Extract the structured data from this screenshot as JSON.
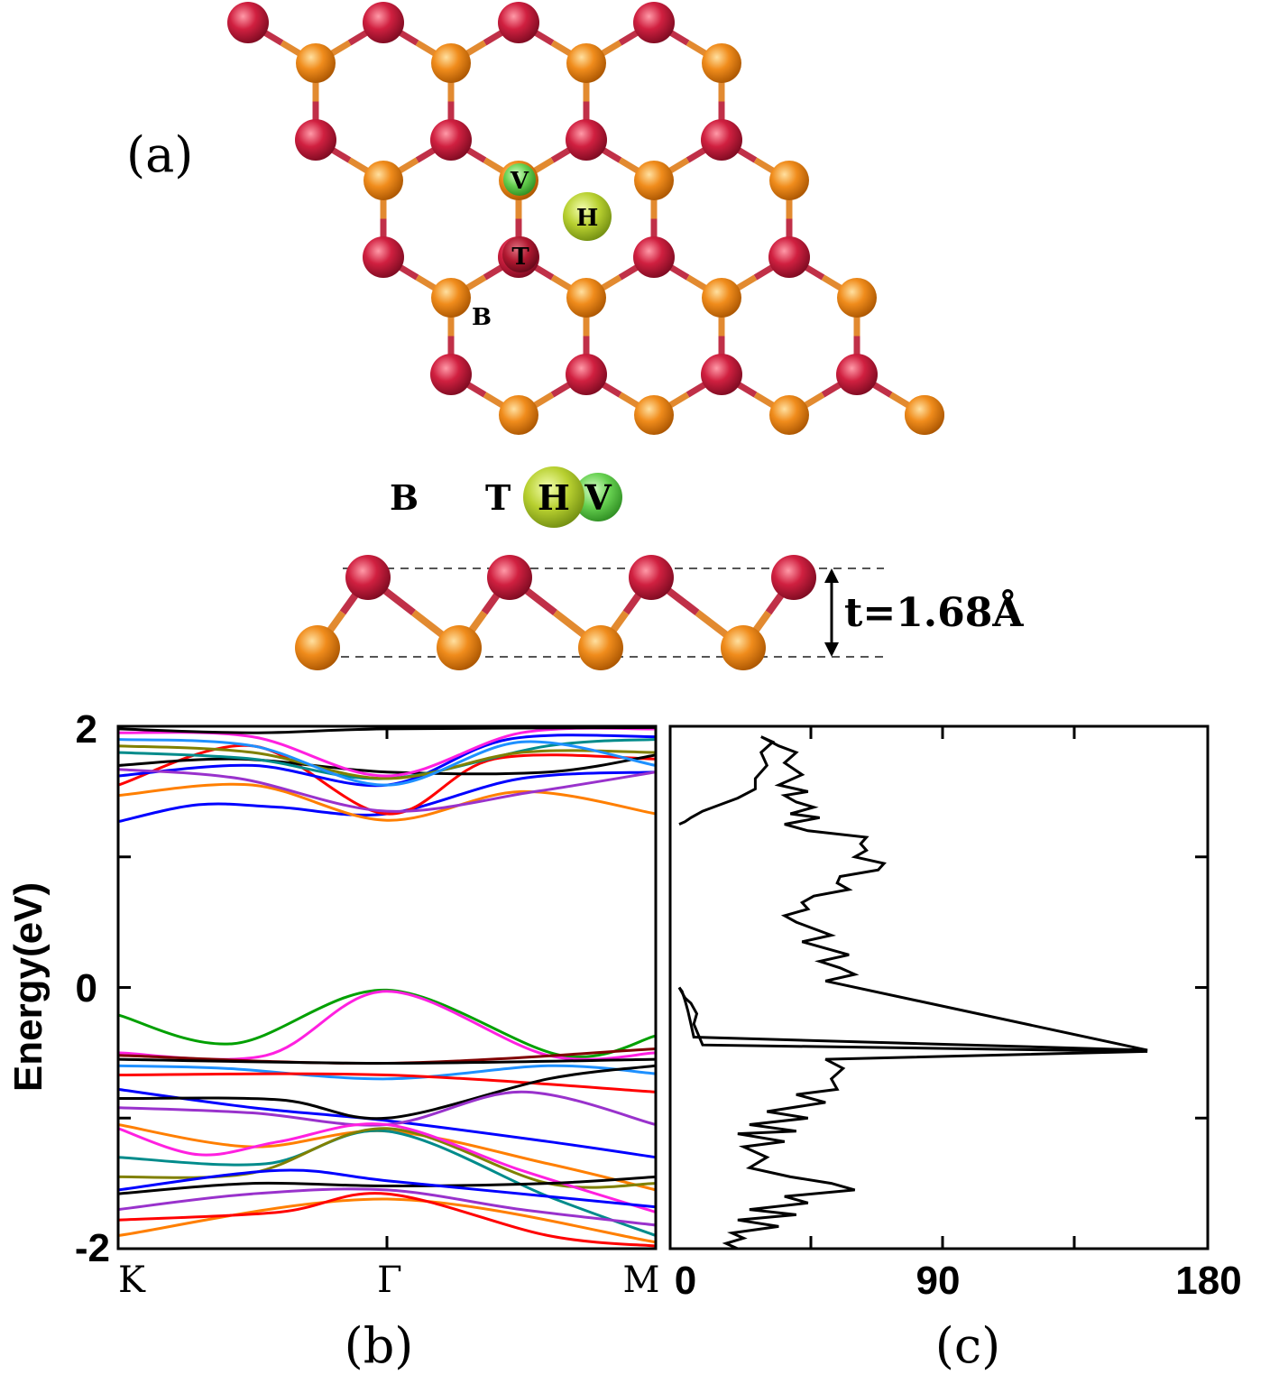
{
  "panel_labels": {
    "a": "(a)",
    "b": "(b)",
    "c": "(c)"
  },
  "sites": {
    "V": "V",
    "H": "H",
    "T": "T",
    "B": "B"
  },
  "thickness_label": "t=1.68Å",
  "colors": {
    "red_atom": "#d02040",
    "orange_atom": "#f08c1c",
    "green_atom": "#66d050",
    "yellow_atom": "#b8d030",
    "bond_red": "#c03048",
    "bond_orange": "#e28a30"
  },
  "chart_data": [
    {
      "type": "line",
      "panel": "(b)",
      "title": "",
      "ylabel": "Energy(eV)",
      "xlabel": "",
      "ylim": [
        -2,
        2
      ],
      "y_ticks": [
        "2",
        "0",
        "-2"
      ],
      "x_ticks": [
        "K",
        "Γ",
        "M"
      ],
      "x_tick_positions": [
        0,
        1,
        2
      ],
      "grid": false,
      "series": [
        {
          "color": "#00a000",
          "points": [
            [
              0,
              -0.21
            ],
            [
              0.43,
              -0.43
            ],
            [
              1,
              -0.02
            ],
            [
              1.65,
              -0.52
            ],
            [
              2,
              -0.37
            ]
          ]
        },
        {
          "color": "#ff20e0",
          "points": [
            [
              0,
              -0.5
            ],
            [
              0.55,
              -0.52
            ],
            [
              1,
              -0.03
            ],
            [
              1.6,
              -0.52
            ],
            [
              2,
              -0.5
            ]
          ]
        },
        {
          "color": "#800000",
          "points": [
            [
              0,
              -0.52
            ],
            [
              1,
              -0.58
            ],
            [
              2,
              -0.47
            ]
          ]
        },
        {
          "color": "#000000",
          "points": [
            [
              0,
              -0.55
            ],
            [
              1,
              -0.58
            ],
            [
              2,
              -0.55
            ]
          ]
        },
        {
          "color": "#1e90ff",
          "points": [
            [
              0,
              -0.6
            ],
            [
              0.4,
              -0.62
            ],
            [
              1,
              -0.7
            ],
            [
              1.6,
              -0.6
            ],
            [
              2,
              -0.66
            ]
          ]
        },
        {
          "color": "#ff0000",
          "points": [
            [
              0,
              -0.67
            ],
            [
              1,
              -0.67
            ],
            [
              2,
              -0.8
            ]
          ]
        },
        {
          "color": "#0000ff",
          "points": [
            [
              0,
              -0.78
            ],
            [
              0.5,
              -0.92
            ],
            [
              1,
              -1.02
            ],
            [
              1.6,
              -1.18
            ],
            [
              2,
              -1.3
            ]
          ]
        },
        {
          "color": "#000000",
          "points": [
            [
              0,
              -0.85
            ],
            [
              0.6,
              -0.86
            ],
            [
              1,
              -1.0
            ],
            [
              1.6,
              -0.7
            ],
            [
              2,
              -0.6
            ]
          ]
        },
        {
          "color": "#9932cc",
          "points": [
            [
              0,
              -0.92
            ],
            [
              0.5,
              -0.96
            ],
            [
              1,
              -1.05
            ],
            [
              1.5,
              -0.8
            ],
            [
              2,
              -1.05
            ]
          ]
        },
        {
          "color": "#ff7f00",
          "points": [
            [
              0,
              -1.05
            ],
            [
              0.5,
              -1.22
            ],
            [
              1,
              -1.1
            ],
            [
              1.6,
              -1.35
            ],
            [
              2,
              -1.55
            ]
          ]
        },
        {
          "color": "#008b8b",
          "points": [
            [
              0,
              -1.3
            ],
            [
              0.55,
              -1.35
            ],
            [
              1,
              -1.1
            ],
            [
              1.6,
              -1.6
            ],
            [
              2,
              -1.9
            ]
          ]
        },
        {
          "color": "#808000",
          "points": [
            [
              0,
              -1.45
            ],
            [
              0.5,
              -1.42
            ],
            [
              1,
              -1.08
            ],
            [
              1.6,
              -1.5
            ],
            [
              2,
              -1.5
            ]
          ]
        },
        {
          "color": "#ff20e0",
          "points": [
            [
              0,
              -1.08
            ],
            [
              0.3,
              -1.28
            ],
            [
              0.6,
              -1.18
            ],
            [
              1,
              -1.05
            ],
            [
              1.5,
              -1.4
            ],
            [
              2,
              -1.72
            ]
          ]
        },
        {
          "color": "#000000",
          "points": [
            [
              0,
              -1.58
            ],
            [
              0.5,
              -1.5
            ],
            [
              1,
              -1.52
            ],
            [
              1.6,
              -1.5
            ],
            [
              2,
              -1.45
            ]
          ]
        },
        {
          "color": "#0000ff",
          "points": [
            [
              0,
              -1.55
            ],
            [
              0.6,
              -1.4
            ],
            [
              1,
              -1.48
            ],
            [
              1.6,
              -1.6
            ],
            [
              2,
              -1.68
            ]
          ]
        },
        {
          "color": "#9932cc",
          "points": [
            [
              0,
              -1.7
            ],
            [
              0.5,
              -1.58
            ],
            [
              1,
              -1.55
            ],
            [
              1.5,
              -1.7
            ],
            [
              2,
              -1.82
            ]
          ]
        },
        {
          "color": "#ff7f00",
          "points": [
            [
              0,
              -1.9
            ],
            [
              1,
              -1.62
            ],
            [
              2,
              -1.95
            ]
          ]
        },
        {
          "color": "#ff0000",
          "points": [
            [
              0,
              -1.78
            ],
            [
              0.6,
              -1.72
            ],
            [
              1,
              -1.58
            ],
            [
              1.6,
              -1.9
            ],
            [
              2,
              -1.98
            ]
          ]
        },
        {
          "color": "#0000ff",
          "points": [
            [
              0,
              1.27
            ],
            [
              0.3,
              1.4
            ],
            [
              0.6,
              1.38
            ],
            [
              1,
              1.33
            ],
            [
              1.5,
              1.6
            ],
            [
              2,
              1.65
            ]
          ]
        },
        {
          "color": "#ff7f00",
          "points": [
            [
              0,
              1.47
            ],
            [
              0.5,
              1.55
            ],
            [
              1,
              1.28
            ],
            [
              1.5,
              1.5
            ],
            [
              2,
              1.33
            ]
          ]
        },
        {
          "color": "#ff0000",
          "points": [
            [
              0,
              1.55
            ],
            [
              0.5,
              1.85
            ],
            [
              1,
              1.33
            ],
            [
              1.4,
              1.75
            ],
            [
              2,
              1.75
            ]
          ]
        },
        {
          "color": "#0000ff",
          "points": [
            [
              0,
              1.62
            ],
            [
              0.5,
              1.7
            ],
            [
              1,
              1.55
            ],
            [
              1.45,
              1.9
            ],
            [
              2,
              1.92
            ]
          ]
        },
        {
          "color": "#9932cc",
          "points": [
            [
              0,
              1.67
            ],
            [
              0.45,
              1.6
            ],
            [
              1,
              1.35
            ],
            [
              1.55,
              1.5
            ],
            [
              2,
              1.65
            ]
          ]
        },
        {
          "color": "#000000",
          "points": [
            [
              0,
              1.7
            ],
            [
              0.45,
              1.75
            ],
            [
              1,
              1.65
            ],
            [
              1.6,
              1.65
            ],
            [
              2,
              1.78
            ]
          ]
        },
        {
          "color": "#008b8b",
          "points": [
            [
              0,
              1.8
            ],
            [
              0.5,
              1.75
            ],
            [
              1,
              1.6
            ],
            [
              1.6,
              1.85
            ],
            [
              2,
              1.9
            ]
          ]
        },
        {
          "color": "#808000",
          "points": [
            [
              0,
              1.85
            ],
            [
              0.5,
              1.8
            ],
            [
              1,
              1.6
            ],
            [
              1.5,
              1.8
            ],
            [
              2,
              1.8
            ]
          ]
        },
        {
          "color": "#ff20e0",
          "points": [
            [
              0,
              1.95
            ],
            [
              0.5,
              1.92
            ],
            [
              1,
              1.62
            ],
            [
              1.5,
              1.95
            ],
            [
              2,
              1.98
            ]
          ]
        },
        {
          "color": "#1e90ff",
          "points": [
            [
              0,
              1.9
            ],
            [
              0.5,
              1.85
            ],
            [
              1,
              1.55
            ],
            [
              1.5,
              1.88
            ],
            [
              2,
              1.7
            ]
          ]
        },
        {
          "color": "#000000",
          "points": [
            [
              0,
              1.98
            ],
            [
              0.5,
              1.95
            ],
            [
              1,
              1.98
            ],
            [
              2,
              1.99
            ]
          ]
        }
      ]
    },
    {
      "type": "line",
      "panel": "(c)",
      "title": "",
      "xlabel": "",
      "ylabel": "",
      "xlim": [
        0,
        180
      ],
      "ylim": [
        -2,
        2
      ],
      "x_ticks": [
        "0",
        "90",
        "180"
      ],
      "grid": false,
      "series": [
        {
          "color": "#000000",
          "x": [
            0,
            2,
            4,
            8,
            14,
            20,
            26,
            26,
            30,
            28,
            32,
            28,
            34,
            40,
            36,
            42,
            34,
            44,
            36,
            40,
            46,
            38,
            48,
            36,
            44,
            64,
            62,
            64,
            60,
            70,
            68,
            55,
            54,
            58,
            46,
            42,
            44,
            36,
            40,
            46,
            52,
            42,
            50,
            58,
            48,
            55,
            60,
            50,
            160,
            5,
            4,
            3,
            2,
            1,
            0
          ],
          "y": [
            1.25,
            1.27,
            1.3,
            1.35,
            1.4,
            1.45,
            1.52,
            1.6,
            1.7,
            1.8,
            1.88,
            1.92,
            1.85,
            1.8,
            1.72,
            1.63,
            1.55,
            1.5,
            1.47,
            1.42,
            1.38,
            1.33,
            1.3,
            1.25,
            1.2,
            1.15,
            1.1,
            1.05,
            1.0,
            0.95,
            0.9,
            0.85,
            0.8,
            0.75,
            0.7,
            0.65,
            0.6,
            0.55,
            0.5,
            0.45,
            0.4,
            0.35,
            0.3,
            0.25,
            0.2,
            0.15,
            0.1,
            0.05,
            -0.48,
            -0.38,
            -0.28,
            -0.18,
            -0.1,
            -0.03,
            0.0
          ]
        }
      ]
    }
  ]
}
